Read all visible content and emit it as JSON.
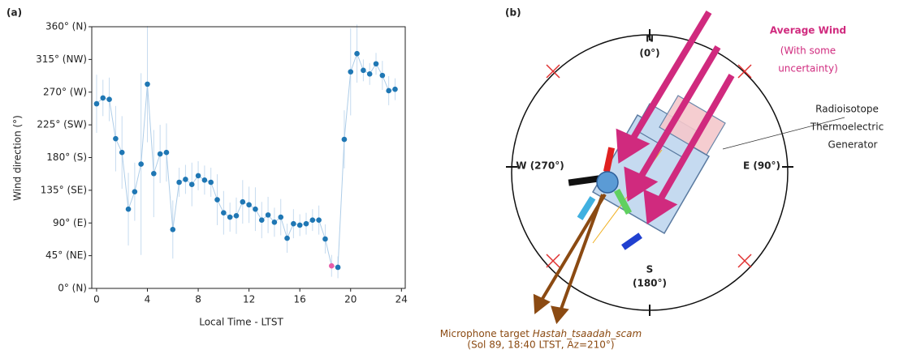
{
  "chart_data": {
    "type": "scatter",
    "panel_label": "(a)",
    "x_label": "Local Time - LTST",
    "y_label": "Wind direction (°)",
    "xlim": [
      -0.38,
      24.3
    ],
    "xticks": [
      0,
      4,
      8,
      12,
      16,
      20,
      24
    ],
    "ylim": [
      0,
      360
    ],
    "yticks": [
      {
        "value": 0,
        "label": "0° (N)"
      },
      {
        "value": 45,
        "label": "45° (NE)"
      },
      {
        "value": 90,
        "label": "90° (E)"
      },
      {
        "value": 135,
        "label": "135° (SE)"
      },
      {
        "value": 180,
        "label": "180° (S)"
      },
      {
        "value": 225,
        "label": "225° (SW)"
      },
      {
        "value": 270,
        "label": "270° (W)"
      },
      {
        "value": 315,
        "label": "315° (NW)"
      },
      {
        "value": 360,
        "label": "360° (N)"
      }
    ],
    "color": "#1f77b4",
    "line_color": "#aecde8",
    "error_color": "#c6dbef",
    "highlight_x": 18.5,
    "highlight_color": "#e75ea8",
    "x": [
      0,
      0.5,
      1,
      1.5,
      2,
      2.5,
      3,
      3.5,
      4,
      4.5,
      5,
      5.5,
      6,
      6.5,
      7,
      7.5,
      8,
      8.5,
      9,
      9.5,
      10,
      10.5,
      11,
      11.5,
      12,
      12.5,
      13,
      13.5,
      14,
      14.5,
      15,
      15.5,
      16,
      16.5,
      17,
      17.5,
      18,
      18.5,
      19,
      19.5,
      20,
      20.5,
      21,
      21.5,
      22,
      22.5,
      23,
      23.5
    ],
    "values": [
      254,
      262,
      260,
      206,
      187,
      109,
      133,
      171,
      281,
      158,
      185,
      187,
      81,
      146,
      150,
      143,
      155,
      149,
      146,
      122,
      104,
      98,
      100,
      119,
      115,
      109,
      94,
      101,
      91,
      98,
      69,
      89,
      87,
      89,
      94,
      94,
      68,
      31,
      29,
      205,
      298,
      323,
      300,
      295,
      309,
      293,
      272,
      274
    ],
    "errors": [
      40,
      25,
      30,
      45,
      50,
      50,
      40,
      125,
      80,
      60,
      40,
      40,
      40,
      20,
      20,
      30,
      20,
      20,
      20,
      35,
      30,
      20,
      25,
      30,
      25,
      30,
      25,
      25,
      20,
      25,
      20,
      20,
      15,
      15,
      15,
      20,
      20,
      15,
      15,
      40,
      60,
      40,
      15,
      15,
      15,
      20,
      20,
      15
    ]
  },
  "diagram": {
    "panel_label": "(b)",
    "title": "Average Wind",
    "subtitle_1": "(With some",
    "subtitle_2": "uncertainty)",
    "north": "N",
    "north_deg": "(0°)",
    "east": "E (90°)",
    "south": "S",
    "south_deg": "(180°)",
    "west": "W (270°)",
    "rtg_1": "Radioisotope",
    "rtg_2": "Thermoelectric",
    "rtg_3": "Generator",
    "caption_1": "Microphone target ",
    "caption_target": "Hastah_tsaadah_scam",
    "caption_2": "(Sol 89, 18:40 LTST, Az=210°)"
  }
}
